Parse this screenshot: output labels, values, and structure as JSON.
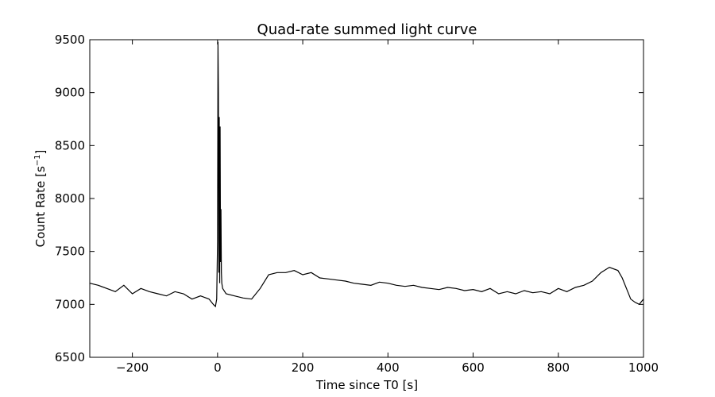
{
  "chart_data": {
    "type": "line",
    "title": "Quad-rate summed light curve",
    "xlabel": "Time since T0 [s]",
    "ylabel_main": "Count Rate [s",
    "ylabel_sup": "−1",
    "ylabel_end": "]",
    "xlim": [
      -300,
      1000
    ],
    "ylim": [
      6500,
      9500
    ],
    "xticks": [
      -200,
      0,
      200,
      400,
      600,
      800,
      1000
    ],
    "xtick_labels": [
      "−200",
      "0",
      "200",
      "400",
      "600",
      "800",
      "1000"
    ],
    "yticks": [
      6500,
      7000,
      7500,
      8000,
      8500,
      9000,
      9500
    ],
    "ytick_labels": [
      "6500",
      "7000",
      "7500",
      "8000",
      "8500",
      "9000",
      "9500"
    ],
    "grid": false,
    "line_color": "#000000",
    "series": [
      {
        "x": [
          -300,
          -280,
          -260,
          -240,
          -220,
          -200,
          -180,
          -160,
          -140,
          -120,
          -100,
          -80,
          -60,
          -40,
          -20,
          -10,
          -5,
          -2,
          0,
          1,
          2,
          3,
          4,
          5,
          6,
          7,
          8,
          9,
          10,
          12,
          20,
          40,
          60,
          80,
          100,
          120,
          140,
          160,
          180,
          200,
          220,
          240,
          260,
          280,
          300,
          320,
          340,
          360,
          380,
          400,
          420,
          440,
          460,
          480,
          500,
          520,
          540,
          560,
          580,
          600,
          620,
          640,
          660,
          680,
          700,
          720,
          740,
          760,
          780,
          800,
          820,
          840,
          860,
          880,
          900,
          920,
          940,
          950,
          960,
          970,
          980,
          990,
          1000
        ],
        "y": [
          7200,
          7180,
          7150,
          7120,
          7180,
          7100,
          7150,
          7120,
          7100,
          7080,
          7120,
          7100,
          7050,
          7080,
          7050,
          7000,
          6980,
          7050,
          7600,
          9480,
          9000,
          7300,
          8770,
          7200,
          8680,
          7400,
          7900,
          7300,
          7200,
          7150,
          7100,
          7080,
          7060,
          7050,
          7150,
          7280,
          7300,
          7300,
          7320,
          7280,
          7300,
          7250,
          7240,
          7230,
          7220,
          7200,
          7190,
          7180,
          7210,
          7200,
          7180,
          7170,
          7180,
          7160,
          7150,
          7140,
          7160,
          7150,
          7130,
          7140,
          7120,
          7150,
          7100,
          7120,
          7100,
          7130,
          7110,
          7120,
          7100,
          7150,
          7120,
          7160,
          7180,
          7220,
          7300,
          7350,
          7320,
          7250,
          7150,
          7050,
          7020,
          7000,
          7050
        ]
      }
    ]
  }
}
